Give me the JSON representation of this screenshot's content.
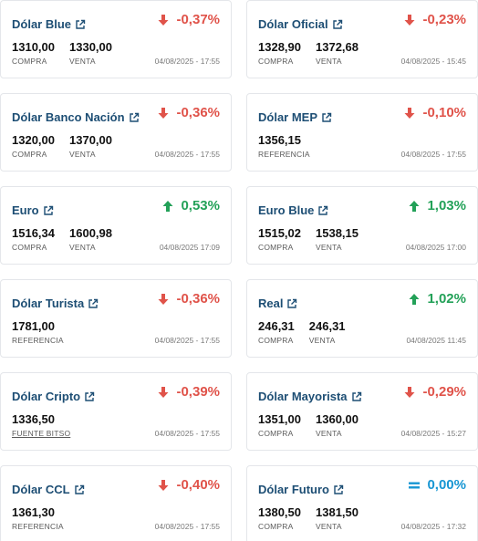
{
  "colors": {
    "title": "#1d4e74",
    "down": "#e0534a",
    "up": "#23a158",
    "equal": "#1796d3"
  },
  "cards": [
    {
      "title": "Dólar Blue",
      "change": "-0,37%",
      "direction": "down",
      "values": [
        {
          "num": "1310,00",
          "label": "COMPRA"
        },
        {
          "num": "1330,00",
          "label": "VENTA"
        }
      ],
      "timestamp": "04/08/2025 - 17:55"
    },
    {
      "title": "Dólar Oficial",
      "change": "-0,23%",
      "direction": "down",
      "values": [
        {
          "num": "1328,90",
          "label": "COMPRA"
        },
        {
          "num": "1372,68",
          "label": "VENTA"
        }
      ],
      "timestamp": "04/08/2025 - 15:45"
    },
    {
      "title": "Dólar Banco Nación",
      "change": "-0,36%",
      "direction": "down",
      "values": [
        {
          "num": "1320,00",
          "label": "COMPRA"
        },
        {
          "num": "1370,00",
          "label": "VENTA"
        }
      ],
      "timestamp": "04/08/2025 - 17:55"
    },
    {
      "title": "Dólar MEP",
      "change": "-0,10%",
      "direction": "down",
      "values": [
        {
          "num": "1356,15",
          "label": "REFERENCIA"
        }
      ],
      "timestamp": "04/08/2025 - 17:55"
    },
    {
      "title": "Euro",
      "change": "0,53%",
      "direction": "up",
      "values": [
        {
          "num": "1516,34",
          "label": "COMPRA"
        },
        {
          "num": "1600,98",
          "label": "VENTA"
        }
      ],
      "timestamp": "04/08/2025 17:09"
    },
    {
      "title": "Euro Blue",
      "change": "1,03%",
      "direction": "up",
      "values": [
        {
          "num": "1515,02",
          "label": "COMPRA"
        },
        {
          "num": "1538,15",
          "label": "VENTA"
        }
      ],
      "timestamp": "04/08/2025 17:00"
    },
    {
      "title": "Dólar Turista",
      "change": "-0,36%",
      "direction": "down",
      "values": [
        {
          "num": "1781,00",
          "label": "REFERENCIA"
        }
      ],
      "timestamp": "04/08/2025 - 17:55"
    },
    {
      "title": "Real",
      "change": "1,02%",
      "direction": "up",
      "values": [
        {
          "num": "246,31",
          "label": "COMPRA"
        },
        {
          "num": "246,31",
          "label": "VENTA"
        }
      ],
      "timestamp": "04/08/2025 11:45"
    },
    {
      "title": "Dólar Cripto",
      "change": "-0,39%",
      "direction": "down",
      "values": [
        {
          "num": "1336,50",
          "label": "FUENTE BITSO",
          "link": true
        }
      ],
      "timestamp": "04/08/2025 - 17:55"
    },
    {
      "title": "Dólar Mayorista",
      "change": "-0,29%",
      "direction": "down",
      "values": [
        {
          "num": "1351,00",
          "label": "COMPRA"
        },
        {
          "num": "1360,00",
          "label": "VENTA"
        }
      ],
      "timestamp": "04/08/2025 - 15:27"
    },
    {
      "title": "Dólar CCL",
      "change": "-0,40%",
      "direction": "down",
      "values": [
        {
          "num": "1361,30",
          "label": "REFERENCIA"
        }
      ],
      "timestamp": "04/08/2025 - 17:55"
    },
    {
      "title": "Dólar Futuro",
      "change": "0,00%",
      "direction": "equal",
      "values": [
        {
          "num": "1380,50",
          "label": "COMPRA"
        },
        {
          "num": "1381,50",
          "label": "VENTA"
        }
      ],
      "timestamp": "04/08/2025 - 17:32"
    }
  ]
}
